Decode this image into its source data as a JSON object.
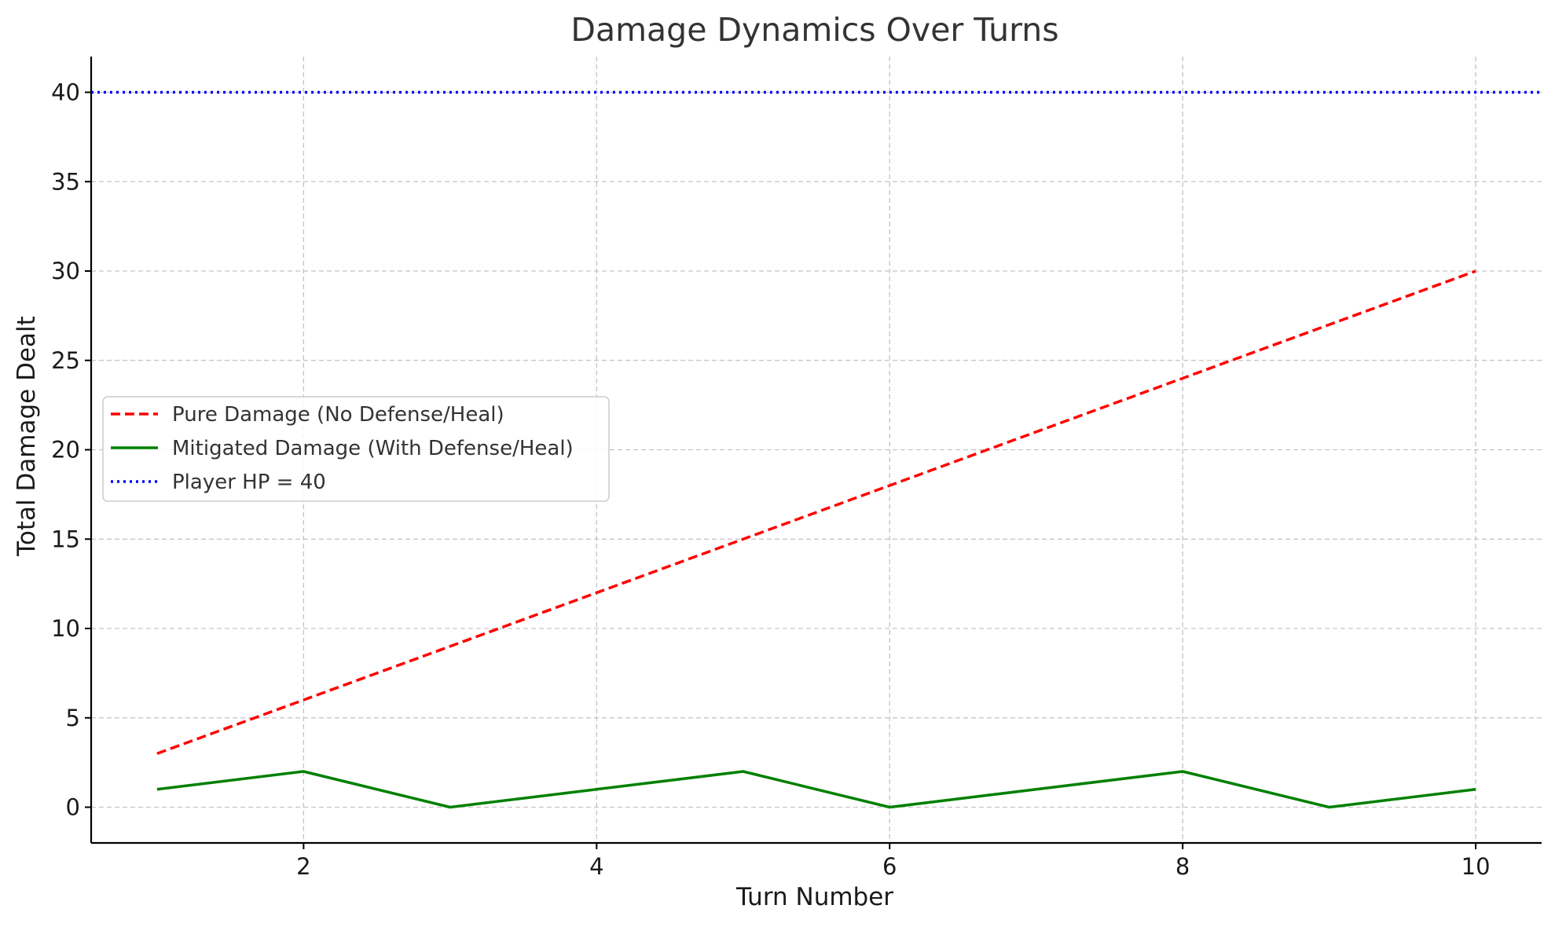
{
  "chart_data": {
    "type": "line",
    "title": "Damage Dynamics Over Turns",
    "xlabel": "Turn Number",
    "ylabel": "Total Damage Dealt",
    "x": [
      1,
      2,
      3,
      4,
      5,
      6,
      7,
      8,
      9,
      10
    ],
    "xlim": [
      0.55,
      10.45
    ],
    "ylim": [
      -2,
      42
    ],
    "xticks": [
      2,
      4,
      6,
      8,
      10
    ],
    "yticks": [
      0,
      5,
      10,
      15,
      20,
      25,
      30,
      35,
      40
    ],
    "grid": true,
    "legend_position": "center-left",
    "series": [
      {
        "name": "Pure Damage (No Defense/Heal)",
        "values": [
          3,
          6,
          9,
          12,
          15,
          18,
          21,
          24,
          27,
          30
        ],
        "color": "#ff0000",
        "style": "dashed"
      },
      {
        "name": "Mitigated Damage (With Defense/Heal)",
        "values": [
          1,
          2,
          0,
          1,
          2,
          0,
          1,
          2,
          0,
          1
        ],
        "color": "#008000",
        "style": "solid"
      }
    ],
    "reference_lines": [
      {
        "name": "Player HP = 40",
        "y": 40,
        "color": "#0000ff",
        "style": "dotted"
      }
    ]
  }
}
